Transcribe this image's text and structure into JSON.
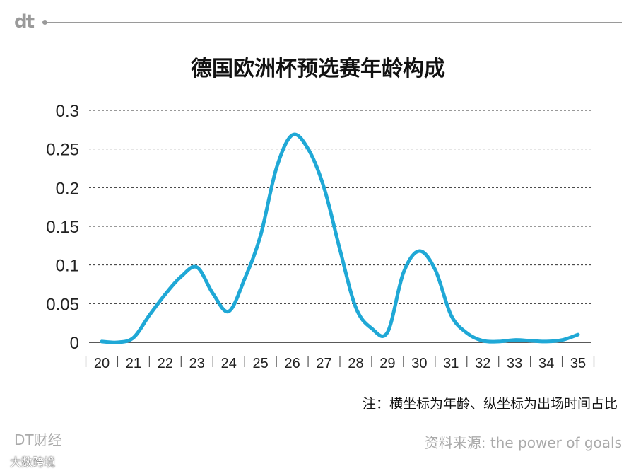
{
  "header": {
    "logo_text": "dt"
  },
  "footer": {
    "brand": "DT财经",
    "source": "资料来源: the power of goals",
    "watermark": "大数跨境"
  },
  "colors": {
    "line": "#1fa8d6",
    "grid": "#333333",
    "axis": "#222222",
    "muted": "#aaaaaa"
  },
  "chart_data": {
    "type": "line",
    "title": "德国欧洲杯预选赛年龄构成",
    "note": "注：横坐标为年龄、纵坐标为出场时间占比",
    "xlabel": "",
    "ylabel": "",
    "ylim": [
      0,
      0.3
    ],
    "yticks": [
      "0",
      "0.05",
      "0.1",
      "0.15",
      "0.2",
      "0.25",
      "0.3"
    ],
    "grid": true,
    "categories": [
      "20",
      "21",
      "22",
      "23",
      "24",
      "25",
      "26",
      "27",
      "28",
      "29",
      "30",
      "31",
      "32",
      "33",
      "34",
      "35"
    ],
    "x": [
      20,
      20.5,
      21,
      21.5,
      22,
      22.5,
      23,
      23.5,
      24,
      24.5,
      25,
      25.5,
      26,
      26.5,
      27,
      27.5,
      28,
      28.5,
      29,
      29.5,
      30,
      30.5,
      31,
      31.5,
      32,
      32.5,
      33,
      33.5,
      34,
      34.5,
      35
    ],
    "values": [
      0.001,
      0.0,
      0.006,
      0.035,
      0.062,
      0.085,
      0.097,
      0.063,
      0.04,
      0.082,
      0.138,
      0.225,
      0.268,
      0.25,
      0.2,
      0.12,
      0.045,
      0.018,
      0.013,
      0.09,
      0.118,
      0.094,
      0.035,
      0.012,
      0.002,
      0.001,
      0.003,
      0.002,
      0.001,
      0.003,
      0.01
    ]
  }
}
